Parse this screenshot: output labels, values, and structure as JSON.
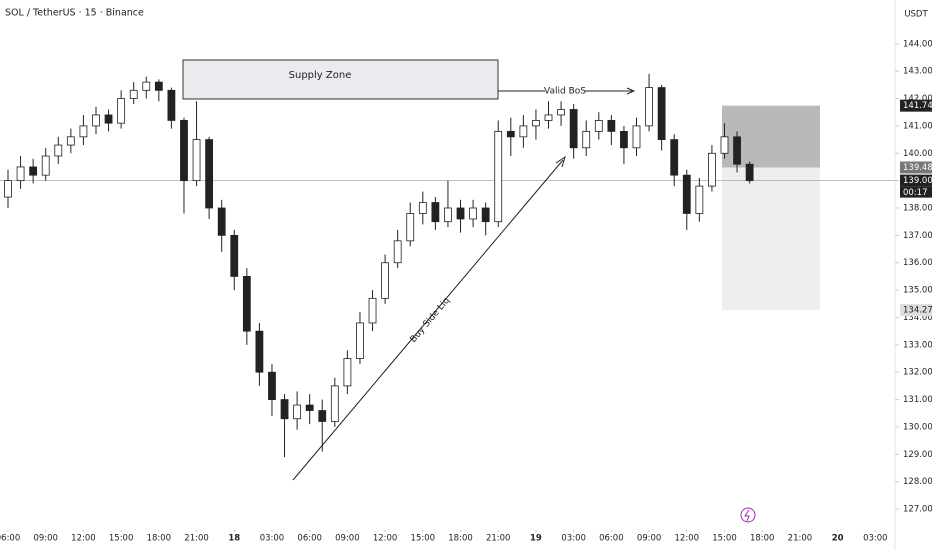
{
  "chart_data": {
    "type": "candlestick",
    "title": "SOL / TetherUS · 15 · Binance",
    "currency": "USDT",
    "xticks": [
      "06:00",
      "09:00",
      "12:00",
      "15:00",
      "18:00",
      "21:00",
      "18",
      "03:00",
      "06:00",
      "09:00",
      "12:00",
      "15:00",
      "18:00",
      "21:00",
      "19",
      "03:00",
      "06:00",
      "09:00",
      "12:00",
      "15:00",
      "18:00",
      "21:00",
      "20",
      "03:00"
    ],
    "open": [
      138.4,
      139.0,
      139.5,
      139.2,
      139.9,
      140.3,
      140.6,
      141.0,
      141.4,
      141.1,
      142.0,
      142.3,
      142.6,
      142.3,
      141.2,
      139.0,
      140.5,
      138.0,
      137.0,
      135.5,
      133.5,
      132.0,
      131.0,
      130.3,
      130.8,
      130.6,
      130.2,
      131.5,
      132.5,
      133.8,
      134.7,
      136.0,
      136.8,
      137.8,
      138.2,
      137.5,
      138.0,
      137.6,
      138.0,
      137.5,
      140.8,
      140.6,
      141.0,
      141.2,
      141.4,
      141.6,
      140.2,
      140.8,
      141.2,
      140.8,
      140.2,
      141.0,
      142.4,
      140.5,
      139.2,
      137.8,
      138.8,
      140.0,
      140.6,
      139.6
    ],
    "high": [
      139.4,
      139.9,
      139.8,
      140.2,
      140.6,
      140.9,
      141.4,
      141.7,
      141.6,
      142.3,
      142.6,
      142.8,
      142.7,
      142.4,
      141.3,
      141.9,
      140.6,
      138.3,
      137.2,
      135.8,
      133.8,
      132.3,
      131.2,
      131.3,
      131.2,
      131.0,
      131.8,
      132.8,
      134.2,
      135.0,
      136.3,
      137.2,
      138.2,
      138.6,
      138.4,
      139.0,
      138.3,
      138.3,
      138.2,
      141.2,
      141.3,
      141.4,
      141.6,
      141.9,
      141.9,
      141.8,
      141.2,
      141.5,
      141.4,
      141.0,
      141.3,
      142.9,
      142.5,
      140.7,
      139.4,
      139.1,
      140.3,
      141.1,
      140.8,
      139.7
    ],
    "low": [
      138.0,
      138.7,
      138.9,
      139.0,
      139.6,
      140.0,
      140.3,
      140.7,
      140.8,
      140.9,
      141.8,
      142.0,
      141.9,
      140.9,
      137.8,
      138.8,
      137.6,
      136.4,
      135.0,
      133.0,
      131.5,
      130.4,
      128.9,
      129.9,
      130.1,
      129.1,
      130.0,
      131.2,
      132.3,
      133.5,
      134.5,
      135.8,
      136.6,
      137.4,
      137.2,
      137.3,
      137.1,
      137.3,
      137.0,
      137.3,
      139.9,
      140.2,
      140.5,
      140.9,
      141.0,
      139.8,
      139.9,
      140.5,
      140.3,
      139.6,
      139.9,
      140.8,
      140.1,
      138.8,
      137.2,
      137.5,
      138.6,
      139.8,
      139.3,
      138.9
    ],
    "close": [
      139.0,
      139.5,
      139.2,
      139.9,
      140.3,
      140.6,
      141.0,
      141.4,
      141.1,
      142.0,
      142.3,
      142.6,
      142.3,
      141.2,
      139.0,
      140.5,
      138.0,
      137.0,
      135.5,
      133.5,
      132.0,
      131.0,
      130.3,
      130.8,
      130.6,
      130.2,
      131.5,
      132.5,
      133.8,
      134.7,
      136.0,
      136.8,
      137.8,
      138.2,
      137.5,
      138.0,
      137.6,
      138.0,
      137.5,
      140.8,
      140.6,
      141.0,
      141.2,
      141.4,
      141.6,
      140.2,
      140.8,
      141.2,
      140.8,
      140.2,
      141.0,
      142.4,
      140.5,
      139.2,
      137.8,
      138.8,
      140.0,
      140.6,
      139.6,
      139.0
    ],
    "ylim": [
      126.6,
      145.6
    ],
    "yticks": [
      {
        "value": 127,
        "label": "127.00"
      },
      {
        "value": 128,
        "label": "128.00"
      },
      {
        "value": 129,
        "label": "129.00"
      },
      {
        "value": 130,
        "label": "130.00"
      },
      {
        "value": 131,
        "label": "131.00"
      },
      {
        "value": 132,
        "label": "132.00"
      },
      {
        "value": 133,
        "label": "133.00"
      },
      {
        "value": 134,
        "label": "134.00"
      },
      {
        "value": 135,
        "label": "135.00"
      },
      {
        "value": 136,
        "label": "136.00"
      },
      {
        "value": 137,
        "label": "137.00"
      },
      {
        "value": 138,
        "label": "138.00"
      },
      {
        "value": 139,
        "label": "139.00"
      },
      {
        "value": 140,
        "label": "140.00"
      },
      {
        "value": 141,
        "label": "141.00"
      },
      {
        "value": 142,
        "label": "142.00"
      },
      {
        "value": 143,
        "label": "143.00"
      },
      {
        "value": 144,
        "label": "144.00"
      }
    ],
    "price_labels": [
      {
        "value": 141.74,
        "label": "141.74"
      },
      {
        "value": 139.48,
        "label": "139.48"
      },
      {
        "value": 139.0,
        "label": "139.00"
      },
      {
        "value": 134.27,
        "label": "134.27"
      }
    ],
    "countdown": "00:17",
    "annotations": [
      "Supply Zone",
      "Valid BoS",
      "Buy Side Liq"
    ]
  }
}
